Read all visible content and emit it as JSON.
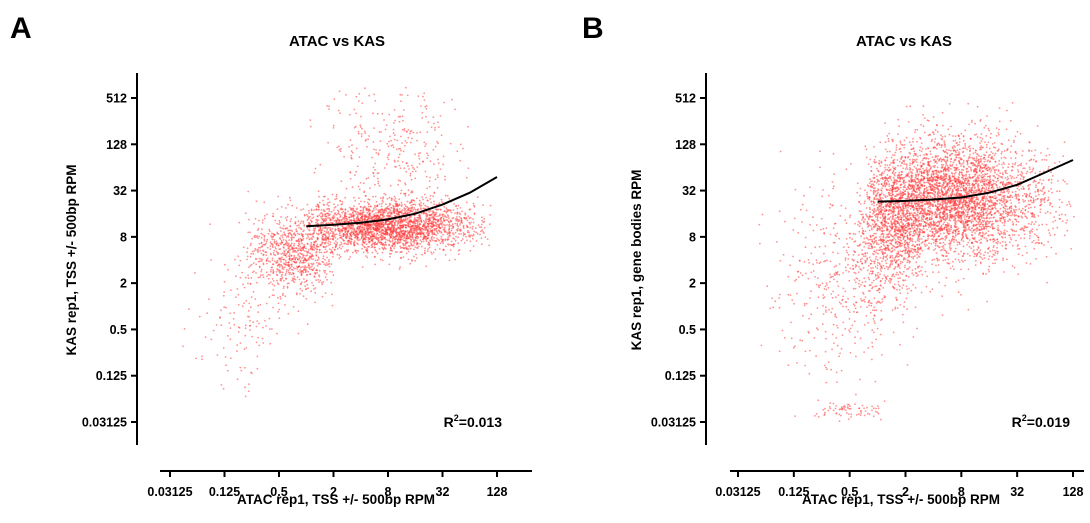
{
  "chart_data": [
    {
      "type": "scatter",
      "panel": "A",
      "title": "ATAC vs KAS",
      "xlabel": "ATAC rep1, TSS +/- 500bp RPM",
      "ylabel": "KAS rep1, TSS +/- 500bp RPM",
      "x_scale": "log2",
      "y_scale": "log2",
      "xlim": [
        0.02,
        256
      ],
      "ylim": [
        0.0234,
        1024
      ],
      "x_ticks": [
        "0.03125",
        "0.125",
        "0.5",
        "2",
        "8",
        "32",
        "128"
      ],
      "y_ticks": [
        "0.03125",
        "0.125",
        "0.5",
        "2",
        "8",
        "32",
        "128",
        "512"
      ],
      "annotation": {
        "base": "R",
        "sup": "2",
        "rest": "=0.013"
      },
      "point_color": "#ff3b3b",
      "fit_color": "#000000",
      "fit_curve": {
        "x": [
          1,
          2,
          4,
          8,
          16,
          32,
          64,
          128
        ],
        "y": [
          11,
          11.5,
          12.2,
          13.5,
          16,
          21,
          30,
          48
        ]
      },
      "clusters": [
        {
          "x_center": 8,
          "x_spread": 1.6,
          "y_center": 11,
          "y_spread": 0.55,
          "n": 2600,
          "x_min": 1,
          "x_max": 110
        },
        {
          "x_center": 0.8,
          "x_spread": 0.9,
          "y_center": 5,
          "y_spread": 0.9,
          "n": 900,
          "x_min": 0.15,
          "x_max": 2
        },
        {
          "x_center": 10,
          "x_spread": 1.5,
          "y_center": 120,
          "y_spread": 1.4,
          "n": 320,
          "x_min": 1,
          "x_max": 64
        },
        {
          "x_center": 0.2,
          "x_spread": 0.8,
          "y_center": 0.6,
          "y_spread": 1.6,
          "n": 140,
          "x_min": 0.04,
          "x_max": 0.6
        }
      ]
    },
    {
      "type": "scatter",
      "panel": "B",
      "title": "ATAC vs KAS",
      "xlabel": "ATAC rep1, TSS +/- 500bp RPM",
      "ylabel": "KAS rep1, gene bodies RPM",
      "x_scale": "log2",
      "y_scale": "log2",
      "xlim": [
        0.02,
        256
      ],
      "ylim": [
        0.0234,
        1024
      ],
      "x_ticks": [
        "0.03125",
        "0.125",
        "0.5",
        "2",
        "8",
        "32",
        "128"
      ],
      "y_ticks": [
        "0.03125",
        "0.125",
        "0.5",
        "2",
        "8",
        "32",
        "128",
        "512"
      ],
      "annotation": {
        "base": "R",
        "sup": "2",
        "rest": "=0.019"
      },
      "point_color": "#ff3b3b",
      "fit_color": "#000000",
      "fit_curve": {
        "x": [
          1,
          2,
          4,
          8,
          16,
          32,
          64,
          128
        ],
        "y": [
          23,
          23.5,
          24.5,
          26,
          30,
          38,
          55,
          80
        ]
      },
      "clusters": [
        {
          "x_center": 6,
          "x_spread": 1.7,
          "y_center": 24,
          "y_spread": 1.3,
          "n": 4200,
          "x_min": 0.8,
          "x_max": 140
        },
        {
          "x_center": 1.4,
          "x_spread": 0.7,
          "y_center": 8,
          "y_spread": 1.4,
          "n": 900,
          "x_min": 0.5,
          "x_max": 3
        },
        {
          "x_center": 0.4,
          "x_spread": 1.2,
          "y_center": 2,
          "y_spread": 2.2,
          "n": 420,
          "x_min": 0.04,
          "x_max": 1.2
        },
        {
          "x_center": 0.45,
          "x_spread": 0.9,
          "y_center": 0.045,
          "y_spread": 0.2,
          "n": 90,
          "x_min": 0.2,
          "x_max": 1.2
        }
      ]
    }
  ]
}
